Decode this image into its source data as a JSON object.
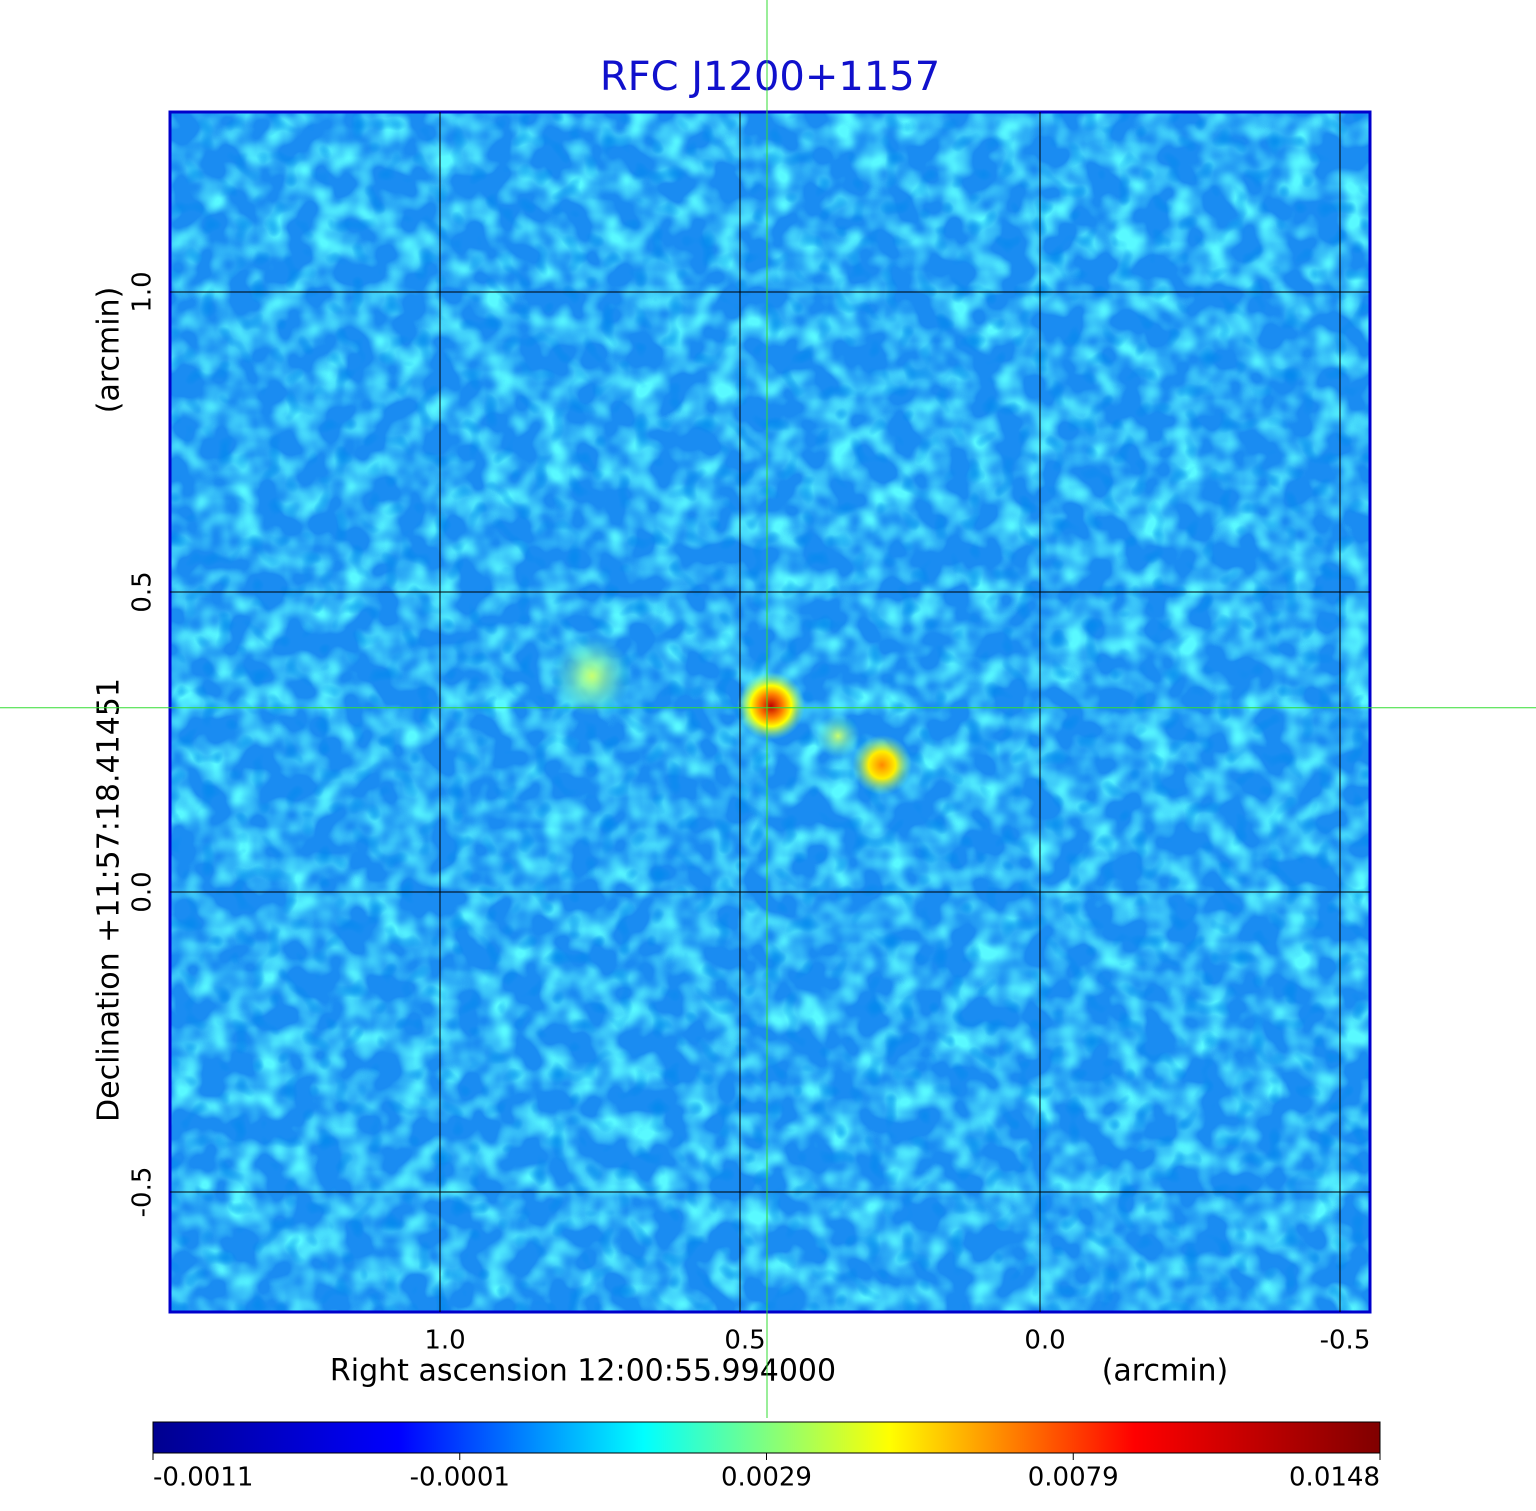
{
  "chart_data": {
    "type": "image",
    "title": "RFC J1200+1157",
    "x_label": "Right ascension  12:00:55.994000",
    "x_unit": "(arcmin)",
    "y_label": "Declination  +11:57:18.41451",
    "y_unit": "(arcmin)",
    "xlim": [
      1.45,
      -0.55
    ],
    "ylim": [
      -0.7,
      1.3
    ],
    "xticks": [
      {
        "value": 1,
        "label": "1.0"
      },
      0.5,
      {
        "value": 0,
        "label": "0.0"
      },
      -0.5
    ],
    "yticks": [
      {
        "value": 1,
        "label": "1.0"
      },
      0.5,
      {
        "value": 0,
        "label": "0.0"
      },
      -0.5
    ],
    "grid": true,
    "crosshair": {
      "x": 0.455,
      "y": 0.307,
      "color": "#33dd33"
    },
    "colorbar": {
      "ticks": [
        -0.0011,
        -0.0001,
        0.0029,
        0.0079,
        0.0148
      ],
      "colors": [
        "#00008f",
        "#0000ff",
        "#00ffff",
        "#ffff00",
        "#ff0000",
        "#800000"
      ]
    }
  }
}
